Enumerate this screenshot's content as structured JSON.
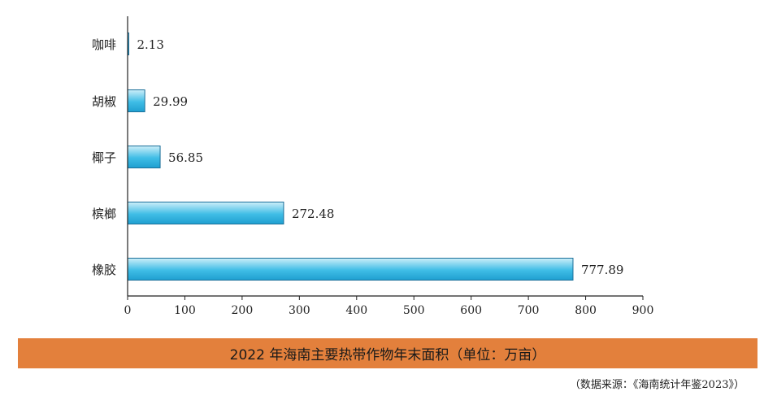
{
  "chart_data": {
    "type": "bar",
    "orientation": "horizontal",
    "categories": [
      "咖啡",
      "胡椒",
      "椰子",
      "槟榔",
      "橡胶"
    ],
    "values": [
      2.13,
      29.99,
      56.85,
      272.48,
      777.89
    ],
    "value_labels": [
      "2.13",
      "29.99",
      "56.85",
      "272.48",
      "777.89"
    ],
    "xlim": [
      0,
      900
    ],
    "xticks": [
      0,
      100,
      200,
      300,
      400,
      500,
      600,
      700,
      800,
      900
    ],
    "grid": false,
    "title": "2022 年海南主要热带作物年末面积（单位：万亩）",
    "source": "（数据来源：《海南统计年鉴2023》）"
  },
  "colors": {
    "bar_top": "#cdeef9",
    "bar_mid": "#3fbde6",
    "bar_bottom": "#1f9fd0",
    "bar_stroke": "#1a6f99",
    "title_band": "#e3803c",
    "axis": "#222222"
  }
}
